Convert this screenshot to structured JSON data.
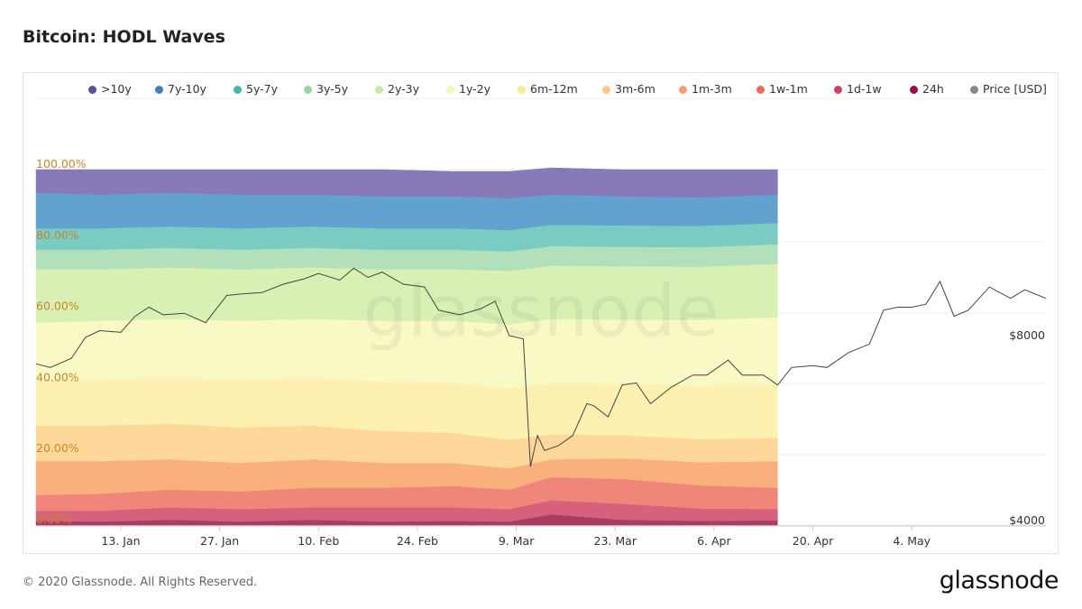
{
  "page": {
    "title": "Bitcoin: HODL Waves",
    "copyright": "© 2020 Glassnode. All Rights Reserved.",
    "brand": "glassnode",
    "watermark": "glassnode"
  },
  "chart_data": {
    "type": "area",
    "title": "Bitcoin: HODL Waves",
    "stacking": "percent",
    "legend_position": "top",
    "y_axis": {
      "ticks": [
        0,
        20,
        40,
        60,
        80,
        100
      ],
      "tick_labels": [
        "0.00%",
        "20.00%",
        "40.00%",
        "60.00%",
        "80.00%",
        "100.00%"
      ],
      "range": [
        0,
        100
      ]
    },
    "y2_axis": {
      "scale": "log",
      "tick_values": [
        4000,
        8000
      ],
      "tick_labels": [
        "$4000",
        "$8000"
      ]
    },
    "x_axis": {
      "range": [
        "2020-01-01",
        "2020-05-23"
      ],
      "ticks": [
        "2020-01-13",
        "2020-01-27",
        "2020-02-10",
        "2020-02-24",
        "2020-03-09",
        "2020-03-23",
        "2020-04-06",
        "2020-04-20",
        "2020-05-04"
      ],
      "tick_labels": [
        "13. Jan",
        "27. Jan",
        "10. Feb",
        "24. Feb",
        "9. Mar",
        "23. Mar",
        "6. Apr",
        "20. Apr",
        "4. May"
      ]
    },
    "dates": [
      "2020-01-01",
      "2020-01-10",
      "2020-01-20",
      "2020-01-30",
      "2020-02-09",
      "2020-02-19",
      "2020-02-29",
      "2020-03-08",
      "2020-03-14",
      "2020-03-24",
      "2020-04-04",
      "2020-04-15"
    ],
    "series": [
      {
        "name": "24h",
        "color": "#a83c63",
        "values": [
          1.2,
          1.0,
          1.5,
          1.0,
          1.5,
          1.0,
          1.2,
          1.0,
          3.0,
          1.5,
          1.2,
          1.3
        ]
      },
      {
        "name": "1d-1w",
        "color": "#d7607c",
        "values": [
          2.8,
          3.0,
          3.5,
          3.5,
          3.5,
          4.0,
          3.8,
          3.5,
          4.0,
          4.5,
          3.5,
          3.2
        ]
      },
      {
        "name": "1w-1m",
        "color": "#f0857a",
        "values": [
          4.5,
          4.8,
          5.0,
          5.0,
          5.5,
          5.5,
          6.0,
          5.5,
          6.5,
          7.0,
          6.5,
          6.0
        ]
      },
      {
        "name": "1m-3m",
        "color": "#f9b07c",
        "values": [
          9.5,
          9.2,
          8.5,
          8.0,
          8.0,
          7.0,
          6.5,
          6.0,
          5.0,
          5.8,
          6.5,
          7.5
        ]
      },
      {
        "name": "3m-6m",
        "color": "#fdd89a",
        "values": [
          10.0,
          10.0,
          10.0,
          10.0,
          9.5,
          9.0,
          8.5,
          8.0,
          7.0,
          6.5,
          6.5,
          6.5
        ]
      },
      {
        "name": "6m-12m",
        "color": "#fdf0b0",
        "values": [
          13.0,
          13.0,
          13.0,
          13.5,
          13.5,
          14.0,
          14.0,
          14.5,
          14.5,
          14.5,
          15.0,
          15.0
        ]
      },
      {
        "name": "1y-2y",
        "color": "#f8f9c4",
        "values": [
          16.0,
          16.5,
          16.5,
          16.5,
          16.5,
          17.0,
          17.5,
          18.0,
          18.0,
          18.0,
          18.5,
          19.0
        ]
      },
      {
        "name": "2y-3y",
        "color": "#d9f0b4",
        "values": [
          15.0,
          14.5,
          14.5,
          14.5,
          14.5,
          14.5,
          14.5,
          15.0,
          15.0,
          15.0,
          15.0,
          15.0
        ]
      },
      {
        "name": "3y-5y",
        "color": "#b1e0bb",
        "values": [
          5.5,
          5.5,
          5.5,
          5.5,
          5.5,
          5.5,
          5.5,
          5.5,
          5.5,
          5.5,
          5.5,
          5.5
        ]
      },
      {
        "name": "5y-7y",
        "color": "#78ccc1",
        "values": [
          6.0,
          6.0,
          6.0,
          6.0,
          6.0,
          6.0,
          6.0,
          6.0,
          6.0,
          6.0,
          6.0,
          6.0
        ]
      },
      {
        "name": "7y-10y",
        "color": "#63a2cf",
        "values": [
          10.0,
          9.5,
          9.5,
          9.5,
          9.0,
          9.0,
          9.0,
          9.0,
          8.5,
          8.2,
          8.0,
          8.0
        ]
      },
      {
        "name": ">10y",
        "color": "#8879b8",
        "values": [
          6.5,
          7.0,
          6.5,
          7.0,
          7.0,
          7.5,
          7.0,
          7.5,
          7.5,
          7.5,
          7.8,
          7.0
        ]
      }
    ],
    "price": {
      "name": "Price [USD]",
      "color": "#444444",
      "dates": [
        "2020-01-01",
        "2020-01-03",
        "2020-01-06",
        "2020-01-08",
        "2020-01-10",
        "2020-01-13",
        "2020-01-15",
        "2020-01-17",
        "2020-01-19",
        "2020-01-22",
        "2020-01-25",
        "2020-01-28",
        "2020-01-30",
        "2020-02-02",
        "2020-02-05",
        "2020-02-08",
        "2020-02-10",
        "2020-02-13",
        "2020-02-15",
        "2020-02-17",
        "2020-02-19",
        "2020-02-22",
        "2020-02-25",
        "2020-02-27",
        "2020-03-01",
        "2020-03-04",
        "2020-03-06",
        "2020-03-08",
        "2020-03-10",
        "2020-03-11",
        "2020-03-12",
        "2020-03-13",
        "2020-03-15",
        "2020-03-17",
        "2020-03-19",
        "2020-03-20",
        "2020-03-22",
        "2020-03-24",
        "2020-03-26",
        "2020-03-28",
        "2020-03-31",
        "2020-04-03",
        "2020-04-05",
        "2020-04-08",
        "2020-04-10",
        "2020-04-13",
        "2020-04-15",
        "2020-04-17",
        "2020-04-20",
        "2020-04-22",
        "2020-04-25",
        "2020-04-28",
        "2020-04-30",
        "2020-05-02",
        "2020-05-04",
        "2020-05-06",
        "2020-05-08",
        "2020-05-10",
        "2020-05-12",
        "2020-05-15",
        "2020-05-18",
        "2020-05-20",
        "2020-05-23"
      ],
      "values": [
        7200,
        7100,
        7350,
        7950,
        8150,
        8100,
        8600,
        8900,
        8650,
        8700,
        8400,
        9300,
        9350,
        9400,
        9700,
        9900,
        10100,
        9850,
        10300,
        9950,
        10150,
        9700,
        9600,
        8800,
        8650,
        8850,
        9100,
        8000,
        7900,
        4900,
        5500,
        5200,
        5300,
        5500,
        6200,
        6150,
        5900,
        6650,
        6700,
        6200,
        6600,
        6900,
        6900,
        7300,
        6900,
        6900,
        6650,
        7100,
        7150,
        7100,
        7500,
        7750,
        8800,
        8900,
        8900,
        9000,
        9800,
        8600,
        8800,
        9600,
        9200,
        9500,
        9200
      ]
    }
  },
  "legend": [
    {
      "label": ">10y",
      "color": "#5a4ea0"
    },
    {
      "label": "7y-10y",
      "color": "#3b83c0"
    },
    {
      "label": "5y-7y",
      "color": "#46b6ad"
    },
    {
      "label": "3y-5y",
      "color": "#98d3a4"
    },
    {
      "label": "2y-3y",
      "color": "#cbeaa0"
    },
    {
      "label": "1y-2y",
      "color": "#f4f6b6"
    },
    {
      "label": "6m-12m",
      "color": "#fde98e"
    },
    {
      "label": "3m-6m",
      "color": "#fcca7e"
    },
    {
      "label": "1m-3m",
      "color": "#f6a06a"
    },
    {
      "label": "1w-1m",
      "color": "#ec6c56"
    },
    {
      "label": "1d-1w",
      "color": "#d24061"
    },
    {
      "label": "24h",
      "color": "#9e0a48"
    },
    {
      "label": "Price [USD]",
      "color": "#888888"
    }
  ]
}
